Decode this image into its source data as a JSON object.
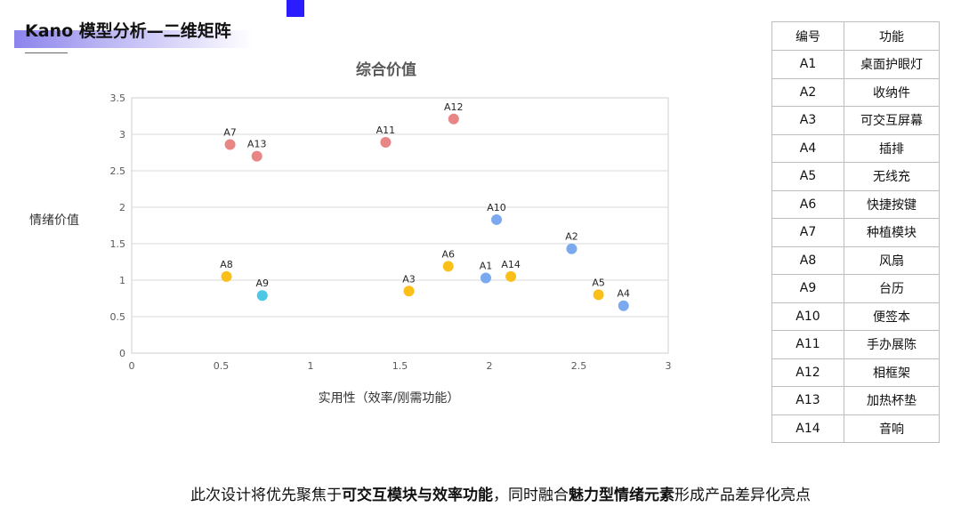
{
  "slide": {
    "title": "Kano 模型分析—二维矩阵",
    "accent_color": "#2b1cff"
  },
  "chart_data": {
    "type": "scatter",
    "title": "综合价值",
    "xlabel": "实用性（效率/刚需功能）",
    "ylabel": "情绪价值",
    "xlim": [
      0,
      3
    ],
    "ylim": [
      0,
      3.5
    ],
    "x_ticks": [
      "0",
      "0.5",
      "1",
      "1.5",
      "2",
      "2.5",
      "3"
    ],
    "y_ticks": [
      "0",
      "0.5",
      "1",
      "1.5",
      "2",
      "2.5",
      "3",
      "3.5"
    ],
    "grid": "horizontal",
    "points": [
      {
        "label": "A1",
        "x": 1.98,
        "y": 1.03,
        "color": "#7aa9f0"
      },
      {
        "label": "A2",
        "x": 2.46,
        "y": 1.43,
        "color": "#7aa9f0"
      },
      {
        "label": "A3",
        "x": 1.55,
        "y": 0.85,
        "color": "#fbbf1a"
      },
      {
        "label": "A4",
        "x": 2.75,
        "y": 0.65,
        "color": "#7aa9f0"
      },
      {
        "label": "A5",
        "x": 2.61,
        "y": 0.8,
        "color": "#fbbf1a"
      },
      {
        "label": "A6",
        "x": 1.77,
        "y": 1.19,
        "color": "#fbbf1a"
      },
      {
        "label": "A7",
        "x": 0.55,
        "y": 2.86,
        "color": "#e88585"
      },
      {
        "label": "A8",
        "x": 0.53,
        "y": 1.05,
        "color": "#fbbf1a"
      },
      {
        "label": "A9",
        "x": 0.73,
        "y": 0.79,
        "color": "#4cc8e6"
      },
      {
        "label": "A10",
        "x": 2.04,
        "y": 1.83,
        "color": "#7aa9f0"
      },
      {
        "label": "A11",
        "x": 1.42,
        "y": 2.89,
        "color": "#e88585"
      },
      {
        "label": "A12",
        "x": 1.8,
        "y": 3.21,
        "color": "#e88585"
      },
      {
        "label": "A13",
        "x": 0.7,
        "y": 2.7,
        "color": "#e88585"
      },
      {
        "label": "A14",
        "x": 2.12,
        "y": 1.05,
        "color": "#fbbf1a"
      }
    ]
  },
  "legend_table": {
    "headers": [
      "编号",
      "功能"
    ],
    "rows": [
      [
        "A1",
        "桌面护眼灯"
      ],
      [
        "A2",
        "收纳件"
      ],
      [
        "A3",
        "可交互屏幕"
      ],
      [
        "A4",
        "插排"
      ],
      [
        "A5",
        "无线充"
      ],
      [
        "A6",
        "快捷按键"
      ],
      [
        "A7",
        "种植模块"
      ],
      [
        "A8",
        "风扇"
      ],
      [
        "A9",
        "台历"
      ],
      [
        "A10",
        "便签本"
      ],
      [
        "A11",
        "手办展陈"
      ],
      [
        "A12",
        "相框架"
      ],
      [
        "A13",
        "加热杯垫"
      ],
      [
        "A14",
        "音响"
      ]
    ]
  },
  "footer": {
    "part1": "此次设计将优先聚焦于",
    "bold1": "可交互模块与效率功能",
    "part2": "，同时融合",
    "bold2": "魅力型情绪元素",
    "part3": "形成产品差异化亮点"
  }
}
